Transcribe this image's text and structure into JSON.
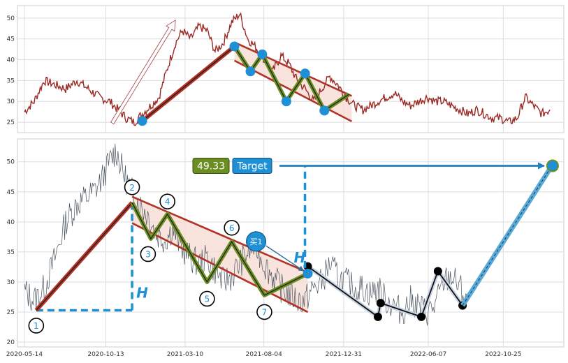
{
  "colors": {
    "price_top": "#9b2a25",
    "price_bottom": "#4a5560",
    "trend_red": "#b03327",
    "zigzag_green": "#6b8e23",
    "channel_fill": "#f7d9d2",
    "blue": "#1f8fd6",
    "arrow_blue": "#2080c0",
    "projection_blue": "#5aaad8",
    "target_green": "#6b8e23",
    "target_blue": "#1f8fd6"
  },
  "chart_data": [
    {
      "type": "line",
      "panel": "top",
      "ylim": [
        22.5,
        53
      ],
      "yticks": [
        25,
        30,
        35,
        40,
        45,
        50
      ],
      "ytick_labels": [
        "25",
        "30",
        "35",
        "40",
        "45",
        "50"
      ],
      "grid": true,
      "price_series": {
        "x": [
          "2020-05-14",
          "2020-06-01",
          "2020-06-20",
          "2020-07-10",
          "2020-07-30",
          "2020-08-20",
          "2020-09-10",
          "2020-10-01",
          "2020-10-20",
          "2020-11-05",
          "2020-11-20",
          "2020-12-05",
          "2020-12-20",
          "2021-01-05",
          "2021-01-20",
          "2021-02-05",
          "2021-02-20",
          "2021-03-05",
          "2021-03-20",
          "2021-04-05",
          "2021-04-20",
          "2021-05-05",
          "2021-05-20",
          "2021-06-05",
          "2021-06-20",
          "2021-07-05",
          "2021-07-20",
          "2021-08-05",
          "2021-08-20",
          "2021-09-05",
          "2021-09-20",
          "2021-10-05",
          "2021-10-20",
          "2021-11-05",
          "2021-11-20",
          "2021-12-05",
          "2021-12-20",
          "2022-01-05",
          "2022-01-20",
          "2022-02-05",
          "2022-02-20",
          "2022-03-05",
          "2022-03-20",
          "2022-04-05",
          "2022-04-20",
          "2022-05-05",
          "2022-05-20",
          "2022-06-05",
          "2022-06-20",
          "2022-07-05",
          "2022-07-20",
          "2022-08-05",
          "2022-08-20",
          "2022-09-05",
          "2022-09-20",
          "2022-10-05",
          "2022-10-20",
          "2022-11-05",
          "2022-11-20",
          "2022-12-05",
          "2022-12-20",
          "2023-01-05",
          "2023-01-20"
        ],
        "y": [
          27.5,
          30,
          35,
          34,
          33,
          35,
          33,
          31,
          30,
          28,
          26,
          25,
          27,
          29,
          31,
          38,
          44,
          47,
          45,
          48,
          47,
          42,
          44,
          49,
          51,
          45,
          43,
          40,
          37,
          41,
          39,
          35,
          33,
          30,
          33,
          36,
          34,
          31,
          29,
          28,
          29,
          30,
          31,
          32,
          30,
          29,
          30,
          31,
          30,
          30,
          29,
          28,
          27,
          28,
          27,
          26,
          26,
          25,
          26,
          31,
          29,
          27,
          28
        ]
      },
      "pattern_points": [
        {
          "x": "2020-12-20",
          "y": 25.3
        },
        {
          "x": "2021-06-10",
          "y": 43.2
        },
        {
          "x": "2021-07-10",
          "y": 37.2
        },
        {
          "x": "2021-08-01",
          "y": 41.3
        },
        {
          "x": "2021-09-15",
          "y": 30.0
        },
        {
          "x": "2021-10-20",
          "y": 36.7
        },
        {
          "x": "2021-11-25",
          "y": 27.8
        },
        {
          "x": "2022-01-10",
          "y": 31.7
        }
      ],
      "channel": {
        "upper": [
          {
            "x": "2021-06-10",
            "y": 44.2
          },
          {
            "x": "2022-01-15",
            "y": 31.3
          }
        ],
        "lower": [
          {
            "x": "2021-06-10",
            "y": 39.8
          },
          {
            "x": "2022-01-15",
            "y": 25.2
          }
        ]
      },
      "outline_arrow": [
        {
          "x": "2020-10-25",
          "y": 24.8
        },
        {
          "x": "2021-02-20",
          "y": 49.5
        }
      ]
    },
    {
      "type": "line",
      "panel": "bottom",
      "xlim": [
        "2020-05-01",
        "2023-02-15"
      ],
      "xticks": [
        "2020-05-14",
        "2020-10-13",
        "2021-03-10",
        "2021-08-04",
        "2021-12-31",
        "2022-06-07",
        "2022-10-25"
      ],
      "xtick_labels": [
        "2020-05-14",
        "2020-10-13",
        "2021-03-10",
        "2021-08-04",
        "2021-12-31",
        "2022-06-07",
        "2022-10-25"
      ],
      "ylim": [
        19.2,
        53.8
      ],
      "yticks": [
        20,
        25,
        30,
        35,
        40,
        45,
        50
      ],
      "ytick_labels": [
        "20",
        "25",
        "30",
        "35",
        "40",
        "45",
        "50"
      ],
      "grid": true,
      "price_series": {
        "x": [
          "2020-05-14",
          "2020-06-01",
          "2020-06-20",
          "2020-07-10",
          "2020-07-30",
          "2020-08-20",
          "2020-09-05",
          "2020-09-20",
          "2020-10-05",
          "2020-10-20",
          "2020-11-01",
          "2020-11-15",
          "2020-12-01",
          "2020-12-15",
          "2021-01-01",
          "2021-01-15",
          "2021-02-01",
          "2021-02-15",
          "2021-03-01",
          "2021-03-20",
          "2021-04-05",
          "2021-04-20",
          "2021-05-05",
          "2021-05-20",
          "2021-06-05",
          "2021-06-20",
          "2021-07-05",
          "2021-07-20",
          "2021-08-05",
          "2021-08-20",
          "2021-09-05",
          "2021-09-20",
          "2021-10-05",
          "2021-10-20",
          "2021-11-05",
          "2021-11-20",
          "2021-12-05",
          "2021-12-20",
          "2022-01-05",
          "2022-01-20",
          "2022-02-05",
          "2022-02-20",
          "2022-03-05",
          "2022-03-20",
          "2022-04-05",
          "2022-04-20",
          "2022-05-05",
          "2022-05-20",
          "2022-06-05",
          "2022-06-20",
          "2022-07-05",
          "2022-07-20",
          "2022-08-05",
          "2022-08-20"
        ],
        "y": [
          28.5,
          27,
          29,
          34,
          40,
          43,
          44,
          45,
          47,
          50,
          52,
          48,
          45,
          43,
          41,
          38,
          37,
          39,
          36,
          34,
          33,
          34,
          32,
          30,
          31,
          33,
          35,
          36,
          33,
          31,
          29,
          28,
          27,
          27,
          29,
          30,
          33,
          31,
          30,
          29,
          29,
          28,
          29,
          27,
          26,
          25,
          27,
          26,
          25,
          26,
          30,
          31,
          29,
          27
        ]
      },
      "pattern_points": [
        {
          "x": "2020-06-05",
          "y": 25.3,
          "label": "1"
        },
        {
          "x": "2020-12-01",
          "y": 43.2,
          "label": "2"
        },
        {
          "x": "2021-01-05",
          "y": 37.2,
          "label": "3"
        },
        {
          "x": "2021-02-05",
          "y": 41.3,
          "label": "4"
        },
        {
          "x": "2021-04-20",
          "y": 30.0,
          "label": "5"
        },
        {
          "x": "2021-06-05",
          "y": 36.7,
          "label": "6"
        },
        {
          "x": "2021-08-05",
          "y": 27.8,
          "label": "7"
        },
        {
          "x": "2021-10-25",
          "y": 31.4,
          "label": ""
        }
      ],
      "channel": {
        "upper": [
          {
            "x": "2020-12-01",
            "y": 44.2
          },
          {
            "x": "2021-10-25",
            "y": 31.6
          }
        ],
        "lower": [
          {
            "x": "2020-12-01",
            "y": 39.8
          },
          {
            "x": "2021-10-25",
            "y": 25.0
          }
        ]
      },
      "breakout_path": [
        {
          "x": "2021-10-25",
          "y": 32.6
        },
        {
          "x": "2022-03-05",
          "y": 24.2
        },
        {
          "x": "2022-03-10",
          "y": 26.5
        },
        {
          "x": "2022-05-25",
          "y": 24.2
        },
        {
          "x": "2022-06-25",
          "y": 31.8
        },
        {
          "x": "2022-08-10",
          "y": 26.1
        }
      ],
      "projection": [
        {
          "x": "2022-08-10",
          "y": 26.1
        },
        {
          "x": "2023-01-25",
          "y": 49.5
        }
      ],
      "target": {
        "value": "49.33",
        "label": "Target",
        "x": "2023-01-25",
        "y": 49.33
      },
      "buy_marker": {
        "label": "买1",
        "x": "2021-10-25",
        "y": 31.4
      },
      "height_marker_label": "H"
    }
  ]
}
